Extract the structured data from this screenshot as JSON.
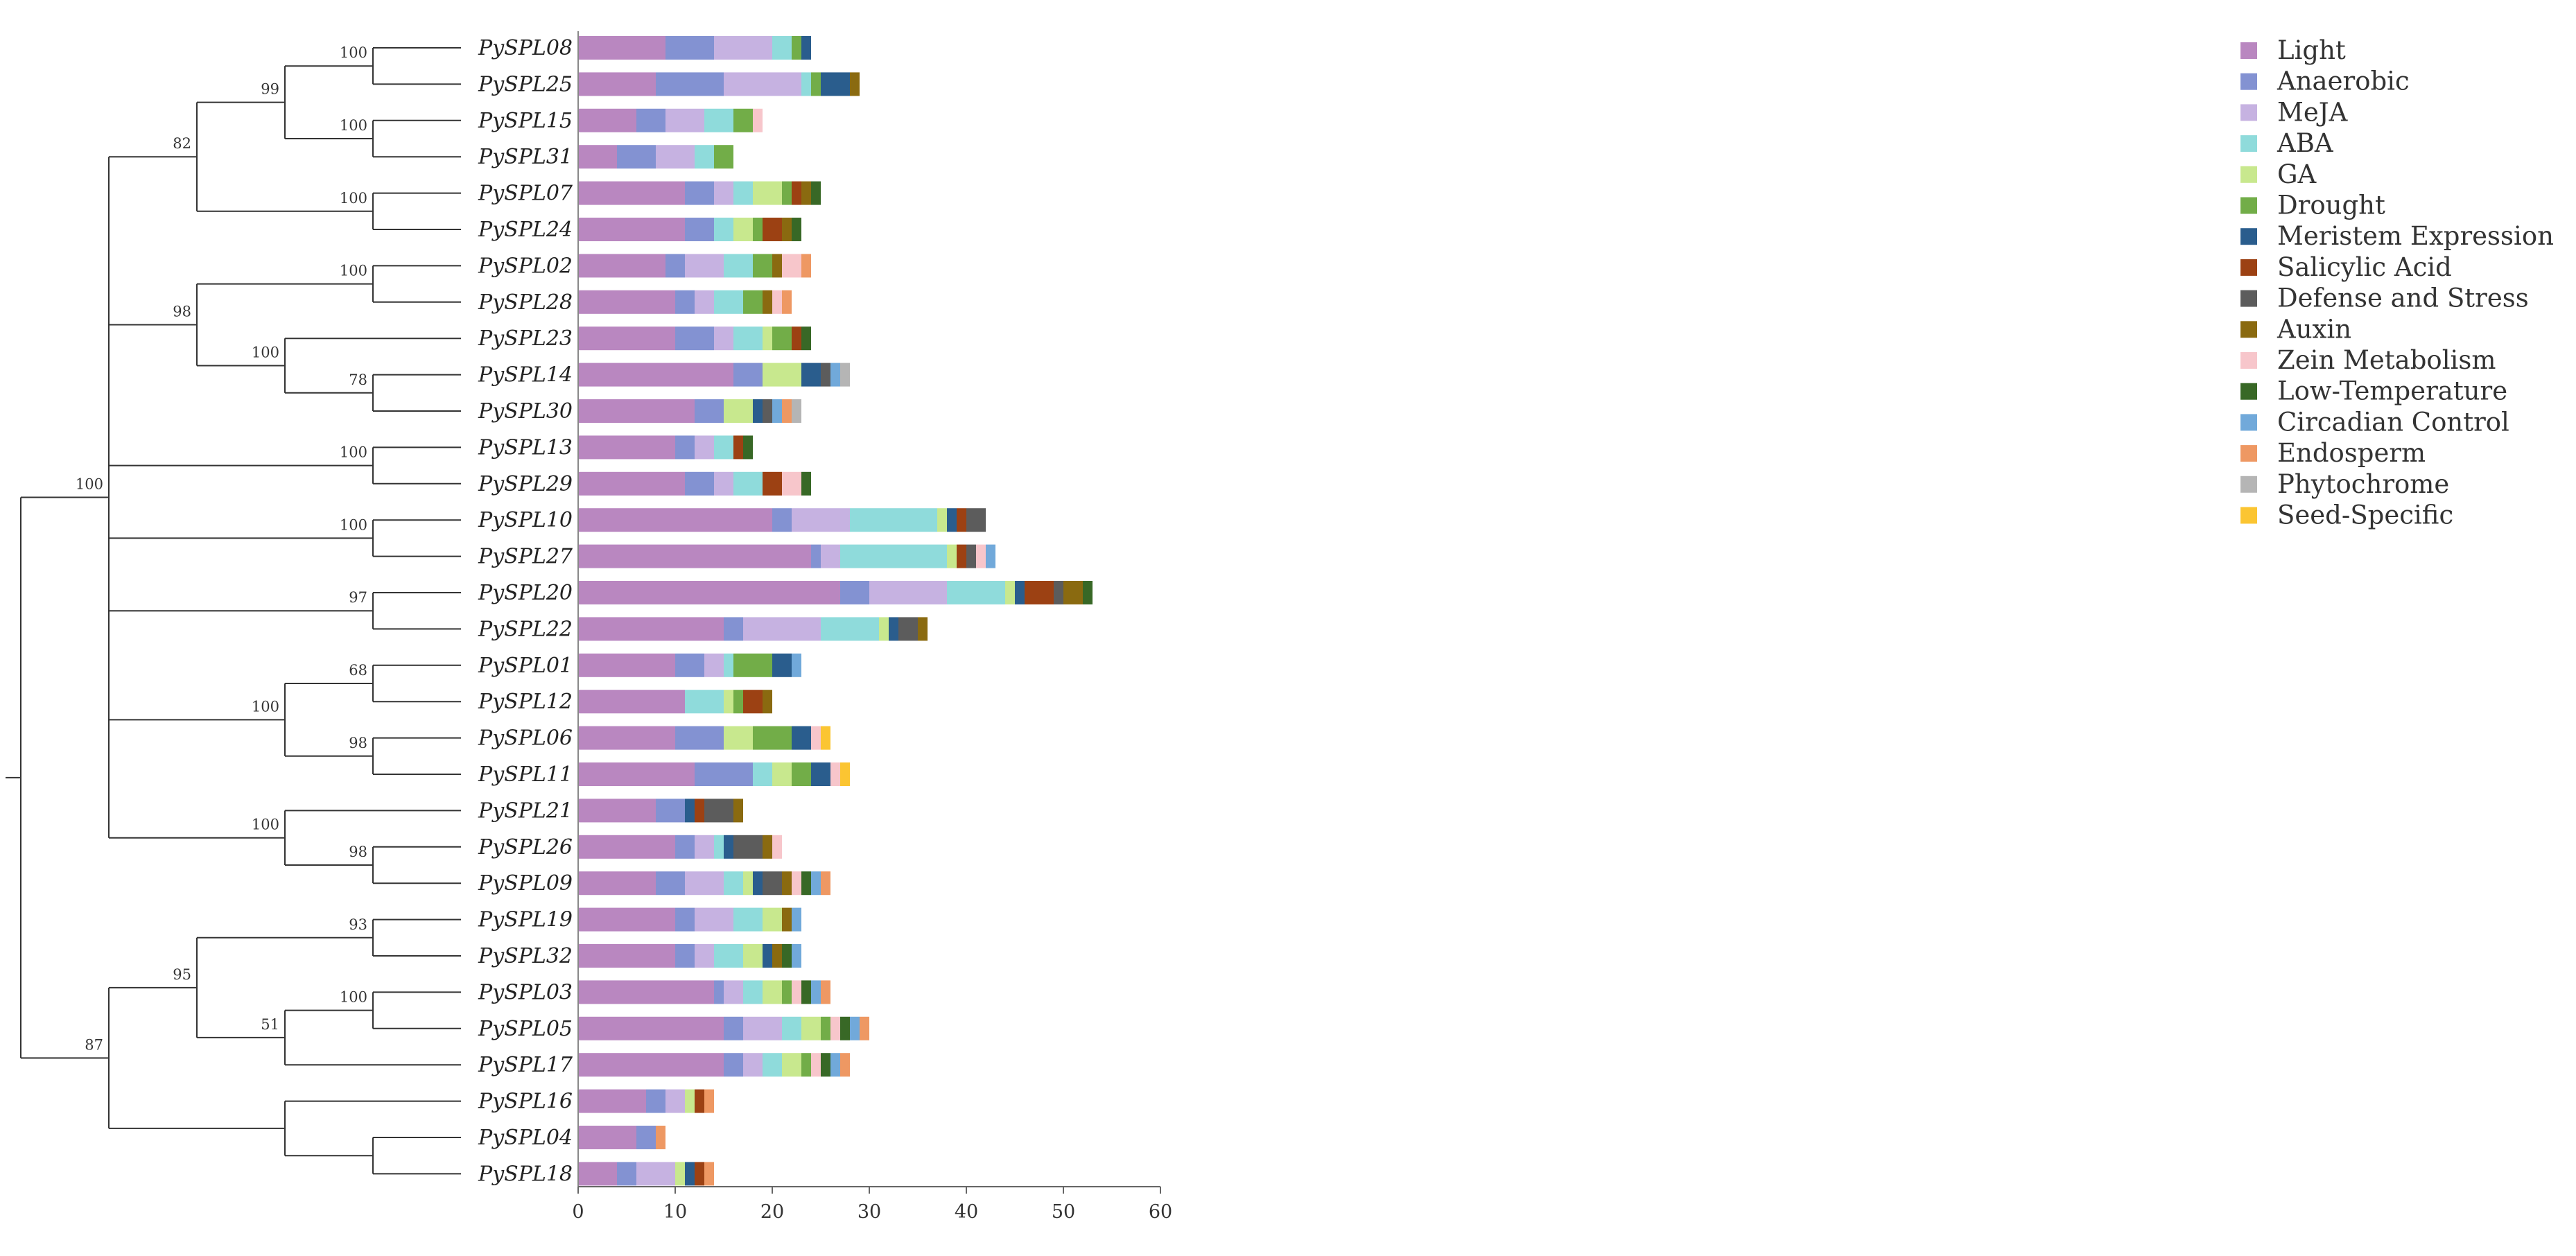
{
  "chart_data": {
    "type": "stacked-horizontal-bar",
    "title": "",
    "xlabel": "",
    "ylabel": "",
    "xlim": [
      0,
      60
    ],
    "xticks": [
      "0",
      "10",
      "20",
      "30",
      "40",
      "50",
      "60"
    ],
    "categories": [
      "Light",
      "Anaerobic",
      "MeJA",
      "ABA",
      "GA",
      "Drought",
      "Meristem Expression",
      "Salicylic Acid",
      "Defense and Stress",
      "Auxin",
      "Zein Metabolism",
      "Low-Temperature",
      "Circadian Control",
      "Endosperm",
      "Phytochrome",
      "Seed-Specific"
    ],
    "colors": [
      "#b987c0",
      "#8392d2",
      "#c6b2e1",
      "#8fdbdb",
      "#c8e88e",
      "#72ad48",
      "#2a5d8d",
      "#9c4113",
      "#5c5c5c",
      "#8a6a10",
      "#f7c6cb",
      "#386826",
      "#71a9da",
      "#ee9863",
      "#b5b5b5",
      "#fbc532"
    ],
    "genes": [
      {
        "name": "PySPL08",
        "values": [
          9,
          5,
          6,
          2,
          0,
          1,
          1,
          0,
          0,
          0,
          0,
          0,
          0,
          0,
          0,
          0
        ]
      },
      {
        "name": "PySPL25",
        "values": [
          8,
          7,
          8,
          1,
          0,
          1,
          3,
          0,
          0,
          1,
          0,
          0,
          0,
          0,
          0,
          0
        ]
      },
      {
        "name": "PySPL15",
        "values": [
          6,
          3,
          4,
          3,
          0,
          2,
          0,
          0,
          0,
          0,
          1,
          0,
          0,
          0,
          0,
          0
        ]
      },
      {
        "name": "PySPL31",
        "values": [
          4,
          4,
          4,
          2,
          0,
          2,
          0,
          0,
          0,
          0,
          0,
          0,
          0,
          0,
          0,
          0
        ]
      },
      {
        "name": "PySPL07",
        "values": [
          11,
          3,
          2,
          2,
          3,
          1,
          0,
          1,
          0,
          1,
          0,
          1,
          0,
          0,
          0,
          0
        ]
      },
      {
        "name": "PySPL24",
        "values": [
          11,
          3,
          0,
          2,
          2,
          1,
          0,
          2,
          0,
          1,
          0,
          1,
          0,
          0,
          0,
          0
        ]
      },
      {
        "name": "PySPL02",
        "values": [
          9,
          2,
          4,
          3,
          0,
          2,
          0,
          0,
          0,
          1,
          2,
          0,
          0,
          1,
          0,
          0
        ]
      },
      {
        "name": "PySPL28",
        "values": [
          10,
          2,
          2,
          3,
          0,
          2,
          0,
          0,
          0,
          1,
          1,
          0,
          0,
          1,
          0,
          0
        ]
      },
      {
        "name": "PySPL23",
        "values": [
          10,
          4,
          2,
          3,
          1,
          2,
          0,
          1,
          0,
          0,
          0,
          1,
          0,
          0,
          0,
          0
        ]
      },
      {
        "name": "PySPL14",
        "values": [
          16,
          3,
          0,
          0,
          4,
          0,
          2,
          0,
          1,
          0,
          0,
          0,
          1,
          0,
          1,
          0
        ]
      },
      {
        "name": "PySPL30",
        "values": [
          12,
          3,
          0,
          0,
          3,
          0,
          1,
          0,
          1,
          0,
          0,
          0,
          1,
          1,
          1,
          0
        ]
      },
      {
        "name": "PySPL13",
        "values": [
          10,
          2,
          2,
          2,
          0,
          0,
          0,
          1,
          0,
          0,
          0,
          1,
          0,
          0,
          0,
          0
        ]
      },
      {
        "name": "PySPL29",
        "values": [
          11,
          3,
          2,
          3,
          0,
          0,
          0,
          2,
          0,
          0,
          2,
          1,
          0,
          0,
          0,
          0
        ]
      },
      {
        "name": "PySPL10",
        "values": [
          20,
          2,
          6,
          9,
          1,
          0,
          1,
          1,
          2,
          0,
          0,
          0,
          0,
          0,
          0,
          0
        ]
      },
      {
        "name": "PySPL27",
        "values": [
          24,
          1,
          2,
          11,
          1,
          0,
          0,
          1,
          1,
          0,
          1,
          0,
          1,
          0,
          0,
          0
        ]
      },
      {
        "name": "PySPL20",
        "values": [
          27,
          3,
          8,
          6,
          1,
          0,
          1,
          3,
          1,
          2,
          0,
          1,
          0,
          0,
          0,
          0
        ]
      },
      {
        "name": "PySPL22",
        "values": [
          15,
          2,
          8,
          6,
          1,
          0,
          1,
          0,
          2,
          1,
          0,
          0,
          0,
          0,
          0,
          0
        ]
      },
      {
        "name": "PySPL01",
        "values": [
          10,
          3,
          2,
          1,
          0,
          4,
          2,
          0,
          0,
          0,
          0,
          0,
          1,
          0,
          0,
          0
        ]
      },
      {
        "name": "PySPL12",
        "values": [
          11,
          0,
          0,
          4,
          1,
          1,
          0,
          2,
          0,
          1,
          0,
          0,
          0,
          0,
          0,
          0
        ]
      },
      {
        "name": "PySPL06",
        "values": [
          10,
          5,
          0,
          0,
          3,
          4,
          2,
          0,
          0,
          0,
          1,
          0,
          0,
          0,
          0,
          1
        ]
      },
      {
        "name": "PySPL11",
        "values": [
          12,
          6,
          0,
          2,
          2,
          2,
          2,
          0,
          0,
          0,
          1,
          0,
          0,
          0,
          0,
          1
        ]
      },
      {
        "name": "PySPL21",
        "values": [
          8,
          3,
          0,
          0,
          0,
          0,
          1,
          1,
          3,
          1,
          0,
          0,
          0,
          0,
          0,
          0
        ]
      },
      {
        "name": "PySPL26",
        "values": [
          10,
          2,
          2,
          1,
          0,
          0,
          1,
          0,
          3,
          1,
          1,
          0,
          0,
          0,
          0,
          0
        ]
      },
      {
        "name": "PySPL09",
        "values": [
          8,
          3,
          4,
          2,
          1,
          0,
          1,
          0,
          2,
          1,
          1,
          1,
          1,
          1,
          0,
          0
        ]
      },
      {
        "name": "PySPL19",
        "values": [
          10,
          2,
          4,
          3,
          2,
          0,
          0,
          0,
          0,
          1,
          0,
          0,
          1,
          0,
          0,
          0
        ]
      },
      {
        "name": "PySPL32",
        "values": [
          10,
          2,
          2,
          3,
          2,
          0,
          1,
          0,
          0,
          1,
          0,
          1,
          1,
          0,
          0,
          0
        ]
      },
      {
        "name": "PySPL03",
        "values": [
          14,
          1,
          2,
          2,
          2,
          1,
          0,
          0,
          0,
          0,
          1,
          1,
          1,
          1,
          0,
          0
        ]
      },
      {
        "name": "PySPL05",
        "values": [
          15,
          2,
          4,
          2,
          2,
          1,
          0,
          0,
          0,
          0,
          1,
          1,
          1,
          1,
          0,
          0
        ]
      },
      {
        "name": "PySPL17",
        "values": [
          15,
          2,
          2,
          2,
          2,
          1,
          0,
          0,
          0,
          0,
          1,
          1,
          1,
          1,
          0,
          0
        ]
      },
      {
        "name": "PySPL16",
        "values": [
          7,
          2,
          2,
          0,
          1,
          0,
          0,
          1,
          0,
          0,
          0,
          0,
          0,
          1,
          0,
          0
        ]
      },
      {
        "name": "PySPL04",
        "values": [
          6,
          2,
          0,
          0,
          0,
          0,
          0,
          0,
          0,
          0,
          0,
          0,
          0,
          1,
          0,
          0
        ]
      },
      {
        "name": "PySPL18",
        "values": [
          4,
          2,
          4,
          0,
          1,
          0,
          1,
          1,
          0,
          0,
          0,
          0,
          0,
          1,
          0,
          0
        ]
      }
    ],
    "bootstrap": [
      "100",
      "99",
      "100",
      "82",
      "100",
      "100",
      "98",
      "100",
      "78",
      "100",
      "100",
      "100",
      "97",
      "68",
      "100",
      "98",
      "100",
      "98",
      "93",
      "95",
      "100",
      "51",
      "87"
    ],
    "legend": {
      "position": "right"
    }
  }
}
